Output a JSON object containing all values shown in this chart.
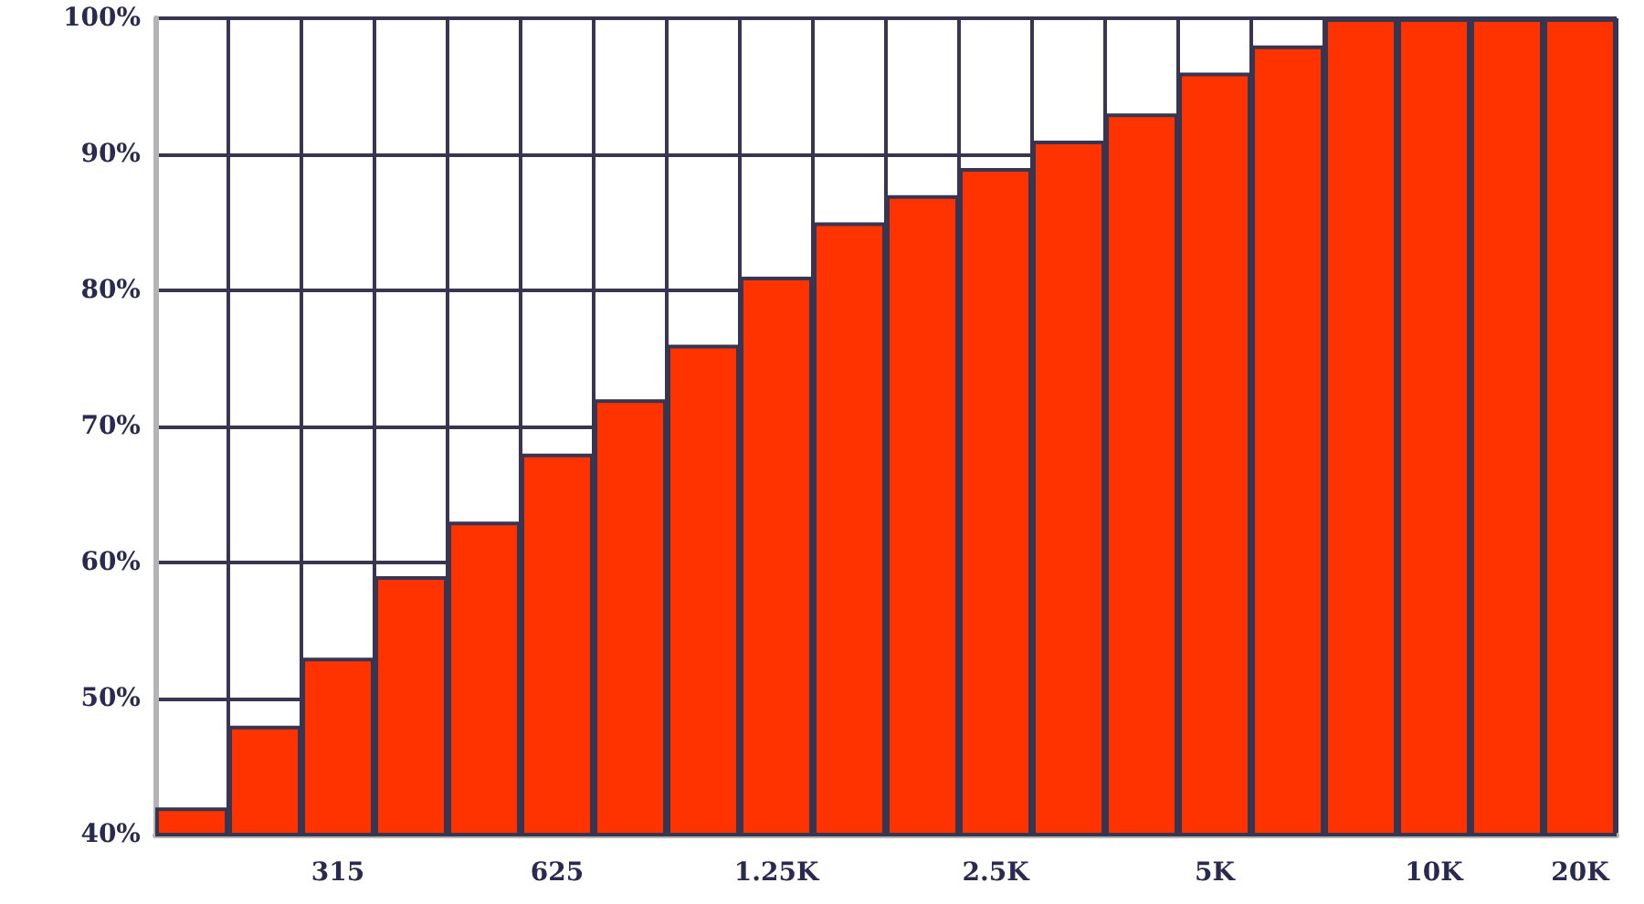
{
  "chart_data": {
    "type": "bar",
    "categories": [
      null,
      null,
      "315",
      null,
      null,
      "625",
      null,
      null,
      "1.25K",
      null,
      null,
      "2.5K",
      null,
      null,
      "5K",
      null,
      null,
      "10K",
      null,
      "20K"
    ],
    "values": [
      42,
      48,
      53,
      59,
      63,
      68,
      72,
      76,
      81,
      85,
      87,
      89,
      91,
      93,
      96,
      98,
      100,
      100,
      100,
      100
    ],
    "color": "#ff3300",
    "ylim": [
      40,
      100
    ],
    "yticks": [
      {
        "value": 40,
        "label": "40%"
      },
      {
        "value": 50,
        "label": "50%"
      },
      {
        "value": 60,
        "label": "60%"
      },
      {
        "value": 70,
        "label": "70%"
      },
      {
        "value": 80,
        "label": "80%"
      },
      {
        "value": 90,
        "label": "90%"
      },
      {
        "value": 100,
        "label": "100%"
      }
    ],
    "grid": true
  }
}
